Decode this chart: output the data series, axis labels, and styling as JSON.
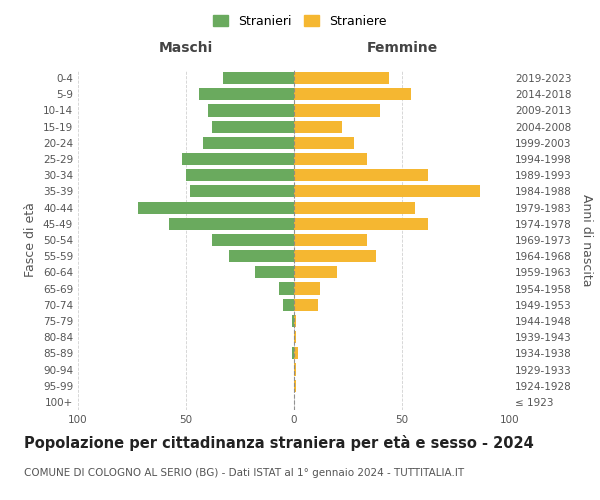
{
  "age_groups": [
    "100+",
    "95-99",
    "90-94",
    "85-89",
    "80-84",
    "75-79",
    "70-74",
    "65-69",
    "60-64",
    "55-59",
    "50-54",
    "45-49",
    "40-44",
    "35-39",
    "30-34",
    "25-29",
    "20-24",
    "15-19",
    "10-14",
    "5-9",
    "0-4"
  ],
  "birth_years": [
    "≤ 1923",
    "1924-1928",
    "1929-1933",
    "1934-1938",
    "1939-1943",
    "1944-1948",
    "1949-1953",
    "1954-1958",
    "1959-1963",
    "1964-1968",
    "1969-1973",
    "1974-1978",
    "1979-1983",
    "1984-1988",
    "1989-1993",
    "1994-1998",
    "1999-2003",
    "2004-2008",
    "2009-2013",
    "2014-2018",
    "2019-2023"
  ],
  "maschi": [
    0,
    0,
    0,
    1,
    0,
    1,
    5,
    7,
    18,
    30,
    38,
    58,
    72,
    48,
    50,
    52,
    42,
    38,
    40,
    44,
    33
  ],
  "femmine": [
    0,
    1,
    1,
    2,
    1,
    1,
    11,
    12,
    20,
    38,
    34,
    62,
    56,
    86,
    62,
    34,
    28,
    22,
    40,
    54,
    44
  ],
  "male_color": "#6aaa5e",
  "female_color": "#f5b731",
  "background_color": "#ffffff",
  "grid_color": "#cccccc",
  "title": "Popolazione per cittadinanza straniera per età e sesso - 2024",
  "subtitle": "COMUNE DI COLOGNO AL SERIO (BG) - Dati ISTAT al 1° gennaio 2024 - TUTTITALIA.IT",
  "ylabel_left": "Fasce di età",
  "ylabel_right": "Anni di nascita",
  "xlabel_maschi": "Maschi",
  "xlabel_femmine": "Femmine",
  "legend_maschi": "Stranieri",
  "legend_femmine": "Straniere",
  "xlim": 100,
  "title_fontsize": 10.5,
  "subtitle_fontsize": 7.5,
  "tick_fontsize": 7.5,
  "label_fontsize": 9
}
